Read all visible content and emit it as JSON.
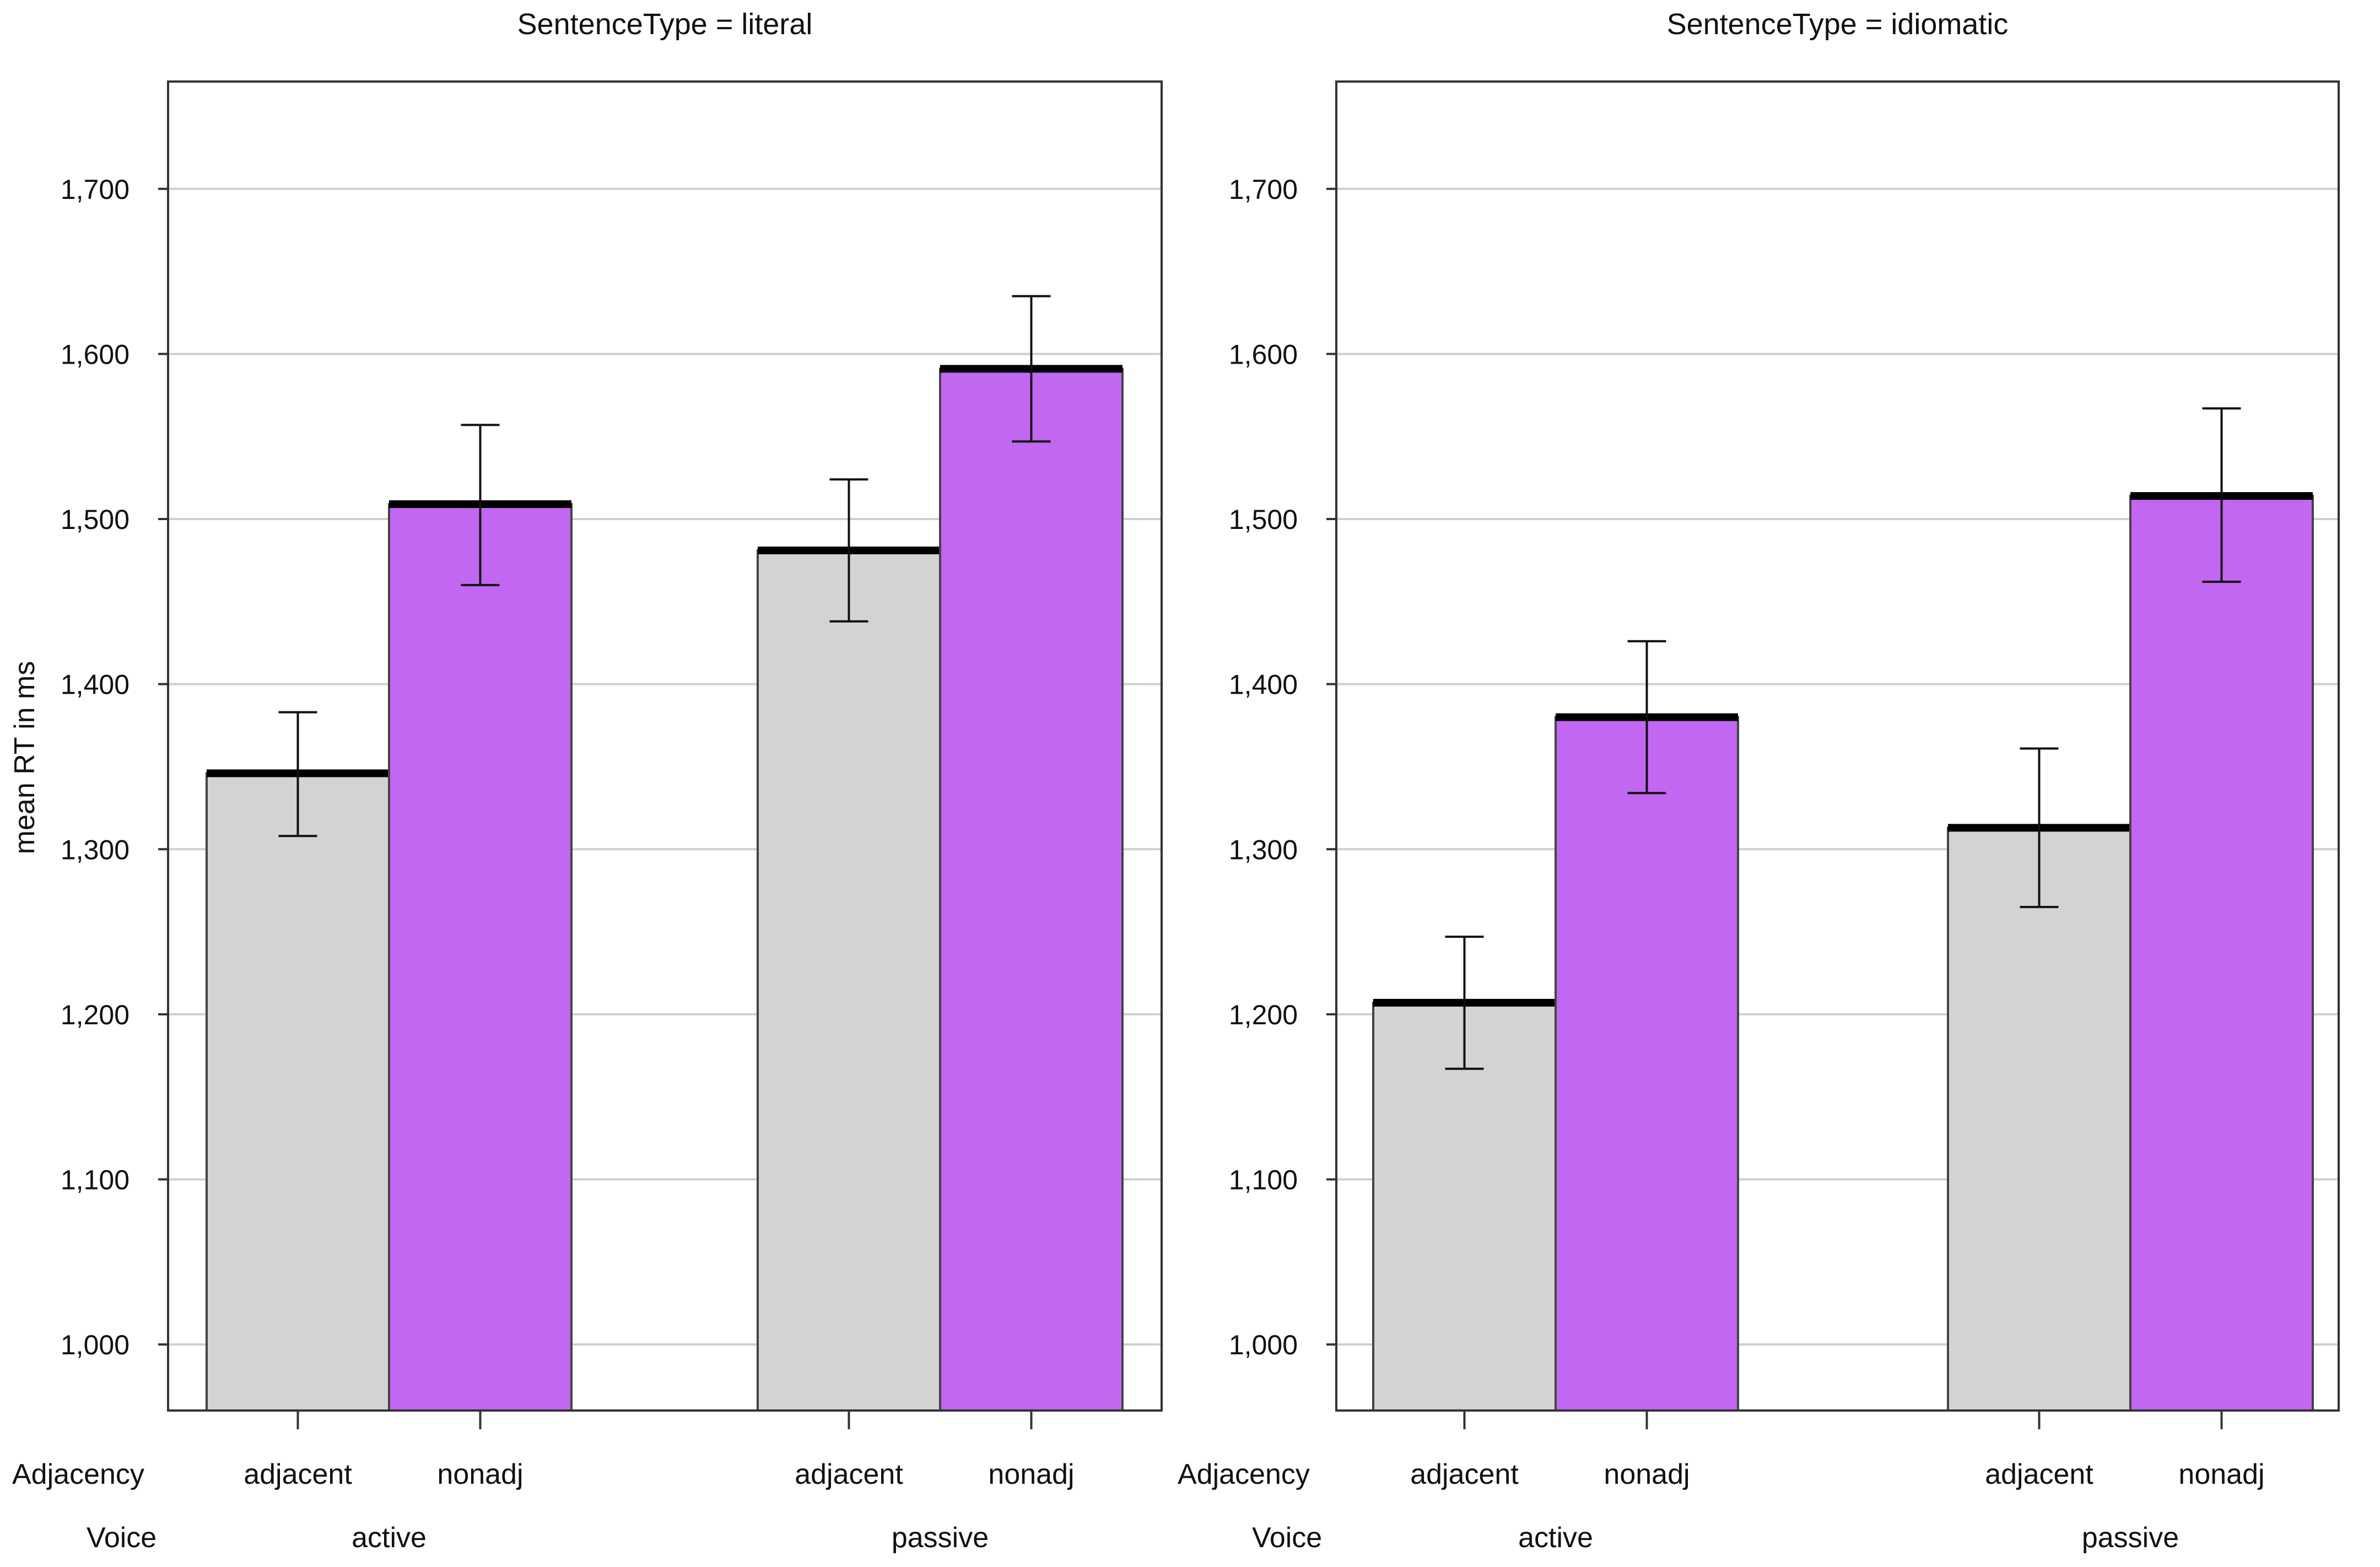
{
  "chart_data": {
    "type": "bar",
    "ylabel": "mean RT in ms",
    "ylim": [
      960,
      1765
    ],
    "yticks": [
      1000,
      1100,
      1200,
      1300,
      1400,
      1500,
      1600,
      1700
    ],
    "ytick_labels": [
      "1,000",
      "1,100",
      "1,200",
      "1,300",
      "1,400",
      "1,500",
      "1,600",
      "1,700"
    ],
    "grid": true,
    "factor_labels": [
      "Adjacency",
      "Voice"
    ],
    "colors": {
      "adjacent": "#d3d3d3",
      "nonadj": "#c267f2"
    },
    "panels": [
      {
        "title": "SentenceType = literal",
        "groups": [
          {
            "voice": "active",
            "bars": [
              {
                "adjacency": "adjacent",
                "mean": 1346,
                "lower": 1308,
                "upper": 1383
              },
              {
                "adjacency": "nonadj",
                "mean": 1509,
                "lower": 1460,
                "upper": 1557
              }
            ]
          },
          {
            "voice": "passive",
            "bars": [
              {
                "adjacency": "adjacent",
                "mean": 1481,
                "lower": 1438,
                "upper": 1524
              },
              {
                "adjacency": "nonadj",
                "mean": 1591,
                "lower": 1547,
                "upper": 1635
              }
            ]
          }
        ]
      },
      {
        "title": "SentenceType = idiomatic",
        "groups": [
          {
            "voice": "active",
            "bars": [
              {
                "adjacency": "adjacent",
                "mean": 1207,
                "lower": 1167,
                "upper": 1247
              },
              {
                "adjacency": "nonadj",
                "mean": 1380,
                "lower": 1334,
                "upper": 1426
              }
            ]
          },
          {
            "voice": "passive",
            "bars": [
              {
                "adjacency": "adjacent",
                "mean": 1313,
                "lower": 1265,
                "upper": 1361
              },
              {
                "adjacency": "nonadj",
                "mean": 1514,
                "lower": 1462,
                "upper": 1567
              }
            ]
          }
        ]
      }
    ]
  }
}
